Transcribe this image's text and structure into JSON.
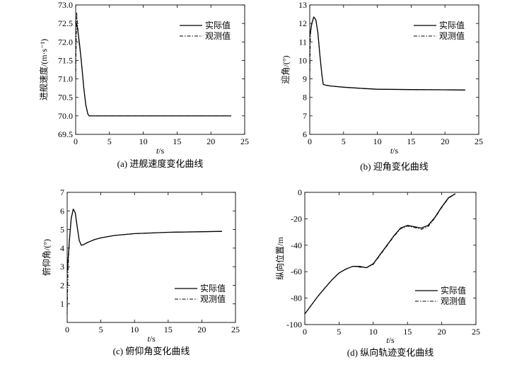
{
  "chart_data": [
    {
      "type": "line",
      "caption": "(a) 进舰速度变化曲线",
      "ylabel": "进舰速度/(m·s⁻¹)",
      "xlabel_italic": "t",
      "xlabel_unit": "/s",
      "xlim": [
        0,
        25
      ],
      "ylim": [
        69.5,
        73.0
      ],
      "xticks": [
        0,
        5,
        10,
        15,
        20,
        25
      ],
      "yticks": [
        69.5,
        70.0,
        70.5,
        71.0,
        71.5,
        72.0,
        72.5,
        73.0
      ],
      "ytick_decimals": 1,
      "grid": false,
      "legend_position": "top-right",
      "series": [
        {
          "name": "实际值",
          "style": "solid",
          "x": [
            0,
            0.2,
            0.4,
            0.6,
            0.8,
            1.0,
            1.2,
            1.5,
            1.8,
            2.0,
            2.3,
            3,
            5,
            10,
            15,
            20,
            23
          ],
          "y": [
            72.55,
            72.45,
            72.2,
            71.9,
            71.55,
            71.15,
            70.75,
            70.3,
            70.05,
            70.0,
            70.0,
            70.0,
            70.0,
            70.0,
            70.0,
            70.0,
            70.0
          ]
        },
        {
          "name": "观测值",
          "style": "dashdot",
          "x": [
            0,
            0.15,
            0.3,
            0.5,
            0.8,
            1.0,
            1.2,
            1.5,
            1.8,
            2.0,
            2.3,
            3,
            5,
            10,
            15,
            20,
            23
          ],
          "y": [
            71.0,
            72.8,
            72.4,
            72.0,
            71.55,
            71.15,
            70.75,
            70.3,
            70.05,
            70.0,
            70.0,
            70.0,
            70.0,
            70.0,
            70.0,
            70.0,
            70.0
          ]
        }
      ]
    },
    {
      "type": "line",
      "caption": "(b) 迎角变化曲线",
      "ylabel": "迎角/(°)",
      "xlabel_italic": "t",
      "xlabel_unit": "/s",
      "xlim": [
        0,
        25
      ],
      "ylim": [
        6,
        13
      ],
      "xticks": [
        0,
        5,
        10,
        15,
        20,
        25
      ],
      "yticks": [
        6,
        7,
        8,
        9,
        10,
        11,
        12,
        13
      ],
      "ytick_decimals": 0,
      "grid": false,
      "legend_position": "top-right",
      "series": [
        {
          "name": "实际值",
          "style": "solid",
          "x": [
            0,
            0.3,
            0.6,
            0.9,
            1.2,
            1.5,
            1.8,
            2.0,
            2.5,
            3,
            5,
            8,
            10,
            15,
            20,
            23
          ],
          "y": [
            11.3,
            12.0,
            12.35,
            12.2,
            11.5,
            10.3,
            9.2,
            8.7,
            8.65,
            8.62,
            8.55,
            8.48,
            8.44,
            8.42,
            8.41,
            8.4
          ]
        },
        {
          "name": "观测值",
          "style": "dashdot",
          "x": [
            0,
            0.1,
            0.3,
            0.6,
            0.9,
            1.2,
            1.5,
            1.8,
            2.0,
            2.5,
            3,
            5,
            8,
            10,
            15,
            20,
            23
          ],
          "y": [
            9.0,
            11.4,
            12.0,
            12.35,
            12.2,
            11.5,
            10.3,
            9.2,
            8.7,
            8.65,
            8.62,
            8.55,
            8.48,
            8.44,
            8.42,
            8.41,
            8.4
          ]
        }
      ]
    },
    {
      "type": "line",
      "caption": "(c) 俯仰角变化曲线",
      "ylabel": "俯仰角/(°)",
      "xlabel_italic": "t",
      "xlabel_unit": "/s",
      "xlim": [
        0,
        25
      ],
      "ylim": [
        0,
        7
      ],
      "xticks": [
        0,
        5,
        10,
        15,
        20,
        25
      ],
      "yticks": [
        1,
        2,
        3,
        4,
        5,
        6,
        7
      ],
      "ytick_decimals": 0,
      "grid": false,
      "legend_position": "bottom-right",
      "series": [
        {
          "name": "实际值",
          "style": "solid",
          "x": [
            0,
            0.3,
            0.6,
            0.9,
            1.2,
            1.5,
            1.8,
            2.1,
            2.5,
            3,
            4,
            5,
            7,
            10,
            15,
            20,
            23
          ],
          "y": [
            2.7,
            4.3,
            5.6,
            6.1,
            5.9,
            5.1,
            4.4,
            4.15,
            4.2,
            4.3,
            4.45,
            4.55,
            4.68,
            4.78,
            4.85,
            4.88,
            4.9
          ]
        },
        {
          "name": "观测值",
          "style": "dashdot",
          "x": [
            0,
            0.1,
            0.3,
            0.6,
            0.9,
            1.2,
            1.5,
            1.8,
            2.1,
            2.5,
            3,
            4,
            5,
            7,
            10,
            15,
            20,
            23
          ],
          "y": [
            0.4,
            2.6,
            4.3,
            5.6,
            6.1,
            5.9,
            5.1,
            4.4,
            4.15,
            4.2,
            4.3,
            4.45,
            4.55,
            4.68,
            4.78,
            4.85,
            4.88,
            4.9
          ]
        }
      ]
    },
    {
      "type": "line",
      "caption": "(d) 纵向轨迹变化曲线",
      "ylabel": "纵向位置/m",
      "xlabel_italic": "t",
      "xlabel_unit": "/s",
      "xlim": [
        0,
        25
      ],
      "ylim": [
        -100,
        0
      ],
      "xticks": [
        0,
        5,
        10,
        15,
        20,
        25
      ],
      "yticks": [
        -100,
        -80,
        -60,
        -40,
        -20,
        0
      ],
      "ytick_decimals": 0,
      "grid": false,
      "legend_position": "bottom-right",
      "series": [
        {
          "name": "实际值",
          "style": "solid",
          "x": [
            0,
            1,
            2,
            3,
            4,
            5,
            6,
            7,
            8,
            9,
            10,
            11,
            12,
            13,
            14,
            15,
            16,
            17,
            18,
            19,
            20,
            21,
            22
          ],
          "y": [
            -92,
            -85,
            -78,
            -72,
            -66,
            -61,
            -58,
            -56,
            -56,
            -57,
            -54,
            -47,
            -40,
            -33,
            -27,
            -25,
            -26,
            -27,
            -25,
            -19,
            -11,
            -4,
            -1
          ]
        },
        {
          "name": "观测值",
          "style": "dashdot",
          "x": [
            0,
            1,
            2,
            3,
            4,
            5,
            6,
            7,
            8,
            9,
            10,
            11,
            12,
            13,
            14,
            15,
            16,
            17,
            18,
            19,
            20,
            21,
            22
          ],
          "y": [
            -92,
            -85,
            -78,
            -72,
            -66,
            -61,
            -58,
            -56,
            -56.5,
            -57,
            -54.5,
            -47.5,
            -40.5,
            -33.5,
            -27.5,
            -25.5,
            -26.5,
            -28,
            -26,
            -19.5,
            -11.5,
            -4.5,
            -1
          ]
        }
      ]
    }
  ]
}
